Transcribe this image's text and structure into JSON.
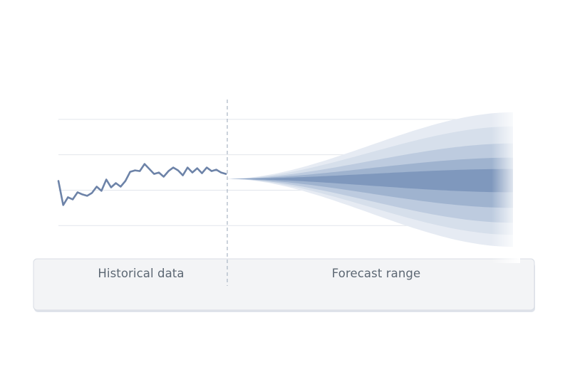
{
  "chart_data": {
    "type": "line",
    "title": "",
    "xlabel": "",
    "ylabel": "",
    "grid": true,
    "regions": [
      {
        "name": "historical",
        "label": "Historical data"
      },
      {
        "name": "forecast",
        "label": "Forecast range"
      }
    ],
    "history": {
      "x": [
        0,
        1,
        2,
        3,
        4,
        5,
        6,
        7,
        8,
        9,
        10,
        11,
        12,
        13,
        14,
        15,
        16,
        17,
        18,
        19,
        20,
        21,
        22,
        23,
        24,
        25,
        26,
        27,
        28,
        29,
        30,
        31,
        32,
        33,
        34,
        35
      ],
      "y": [
        1.3,
        -2.1,
        -1.0,
        -1.3,
        -0.3,
        -0.6,
        -0.8,
        -0.4,
        0.5,
        -0.1,
        1.5,
        0.4,
        1.0,
        0.5,
        1.3,
        2.6,
        2.8,
        2.7,
        3.7,
        3.0,
        2.3,
        2.5,
        1.9,
        2.7,
        3.2,
        2.8,
        2.1,
        3.2,
        2.5,
        3.1,
        2.4,
        3.2,
        2.7,
        2.9,
        2.5,
        2.3
      ]
    },
    "forecast": {
      "x_start": 35,
      "x_end": 95,
      "center": 1.6,
      "bands": [
        {
          "upper": 11.0,
          "lower": -8.0,
          "color": "#e6ebf3"
        },
        {
          "upper": 9.0,
          "lower": -6.3,
          "color": "#d6dfeb"
        },
        {
          "upper": 6.6,
          "lower": -4.6,
          "color": "#bdcbdf"
        },
        {
          "upper": 4.6,
          "lower": -2.5,
          "color": "#9fb3cf"
        },
        {
          "upper": 3.0,
          "lower": -0.3,
          "color": "#7f98bd"
        }
      ]
    },
    "colors": {
      "line": "#6d83a8",
      "grid": "#e2e6ec",
      "divider": "#a9b4c3",
      "panel_fill": "#f3f4f6",
      "panel_edge": "#d8dde4"
    }
  }
}
